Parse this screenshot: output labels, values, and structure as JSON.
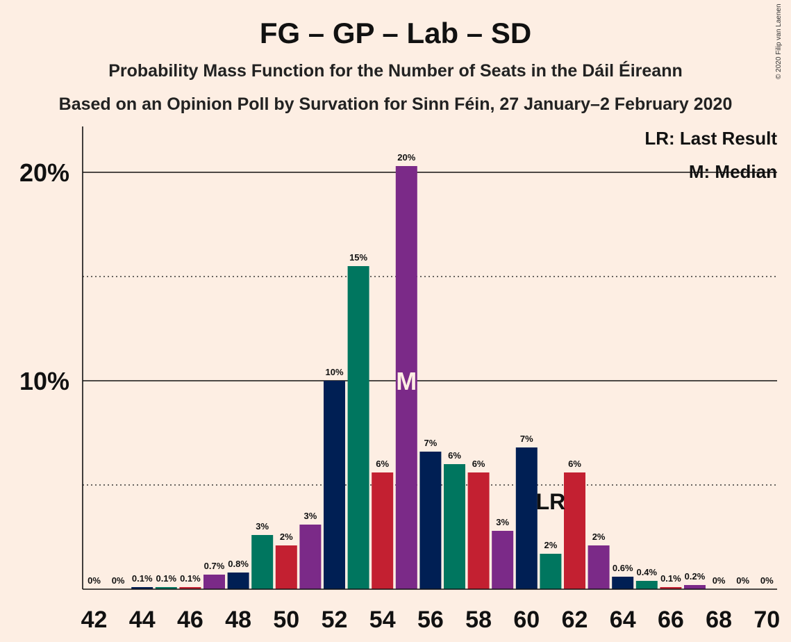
{
  "header": {
    "title": "FG – GP – Lab – SD",
    "subtitle": "Probability Mass Function for the Number of Seats in the Dáil Éireann",
    "subtitle2": "Based on an Opinion Poll by Survation for Sinn Féin, 27 January–2 February 2020",
    "copyright": "© 2020 Filip van Laenen"
  },
  "legend": {
    "last_result": "LR: Last Result",
    "median": "M: Median"
  },
  "colors": {
    "background": "#FDEEE3",
    "navy": "#001F54",
    "green": "#00765F",
    "red": "#C32031",
    "purple": "#7B2A88"
  },
  "chart_data": {
    "type": "bar",
    "x": [
      42,
      43,
      44,
      45,
      46,
      47,
      48,
      49,
      50,
      51,
      52,
      53,
      54,
      55,
      56,
      57,
      58,
      59,
      60,
      61,
      62,
      63,
      64,
      65,
      66,
      67,
      68,
      69,
      70
    ],
    "values": [
      0,
      0,
      0.1,
      0.1,
      0.1,
      0.7,
      0.8,
      2.6,
      2.1,
      3.1,
      10.0,
      15.5,
      5.6,
      20.3,
      6.6,
      6.0,
      5.6,
      2.8,
      6.8,
      1.7,
      5.6,
      2.1,
      0.6,
      0.4,
      0.1,
      0.2,
      0,
      0,
      0
    ],
    "labels": [
      "0%",
      "0%",
      "0.1%",
      "0.1%",
      "0.1%",
      "0.7%",
      "0.8%",
      "3%",
      "2%",
      "3%",
      "10%",
      "15%",
      "6%",
      "20%",
      "7%",
      "6%",
      "6%",
      "3%",
      "7%",
      "2%",
      "6%",
      "2%",
      "0.6%",
      "0.4%",
      "0.1%",
      "0.2%",
      "0%",
      "0%",
      "0%"
    ],
    "bar_colors": [
      "navy",
      "green",
      "navy",
      "green",
      "red",
      "purple",
      "navy",
      "green",
      "red",
      "purple",
      "navy",
      "green",
      "red",
      "purple",
      "navy",
      "green",
      "red",
      "purple",
      "navy",
      "green",
      "red",
      "purple",
      "navy",
      "green",
      "red",
      "purple",
      "navy",
      "green",
      "red"
    ],
    "x_tick_labels": [
      "42",
      "44",
      "46",
      "48",
      "50",
      "52",
      "54",
      "56",
      "58",
      "60",
      "62",
      "64",
      "66",
      "68",
      "70"
    ],
    "y_tick_labels": [
      "10%",
      "20%"
    ],
    "y_ticks": [
      10,
      20
    ],
    "y_dotted_lines": [
      5,
      15
    ],
    "ylim": [
      0,
      22
    ],
    "median": 55,
    "median_label": "M",
    "last_result": 61,
    "last_result_label": "LR"
  }
}
